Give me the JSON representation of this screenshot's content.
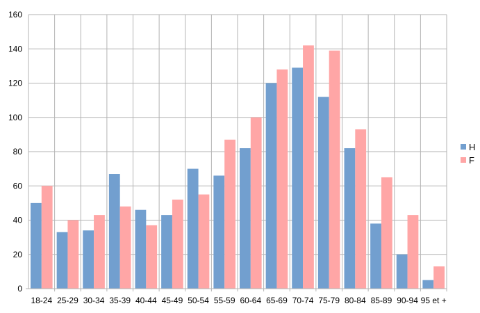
{
  "chart_data": {
    "type": "bar",
    "title": "",
    "xlabel": "",
    "ylabel": "",
    "categories": [
      "18-24",
      "25-29",
      "30-34",
      "35-39",
      "40-44",
      "45-49",
      "50-54",
      "55-59",
      "60-64",
      "65-69",
      "70-74",
      "75-79",
      "80-84",
      "85-89",
      "90-94",
      "95 et +"
    ],
    "series": [
      {
        "name": "H",
        "color": "#729fcf",
        "values": [
          50,
          33,
          34,
          67,
          46,
          43,
          70,
          66,
          82,
          120,
          129,
          112,
          82,
          38,
          20,
          5
        ]
      },
      {
        "name": "F",
        "color": "#ffa6a6",
        "values": [
          60,
          40,
          43,
          48,
          37,
          52,
          55,
          87,
          100,
          128,
          142,
          139,
          93,
          65,
          43,
          13
        ]
      }
    ],
    "ylim": [
      0,
      160
    ],
    "yticks": [
      "0",
      "20",
      "40",
      "60",
      "80",
      "100",
      "120",
      "140",
      "160"
    ],
    "grid": true,
    "legend": "right"
  }
}
